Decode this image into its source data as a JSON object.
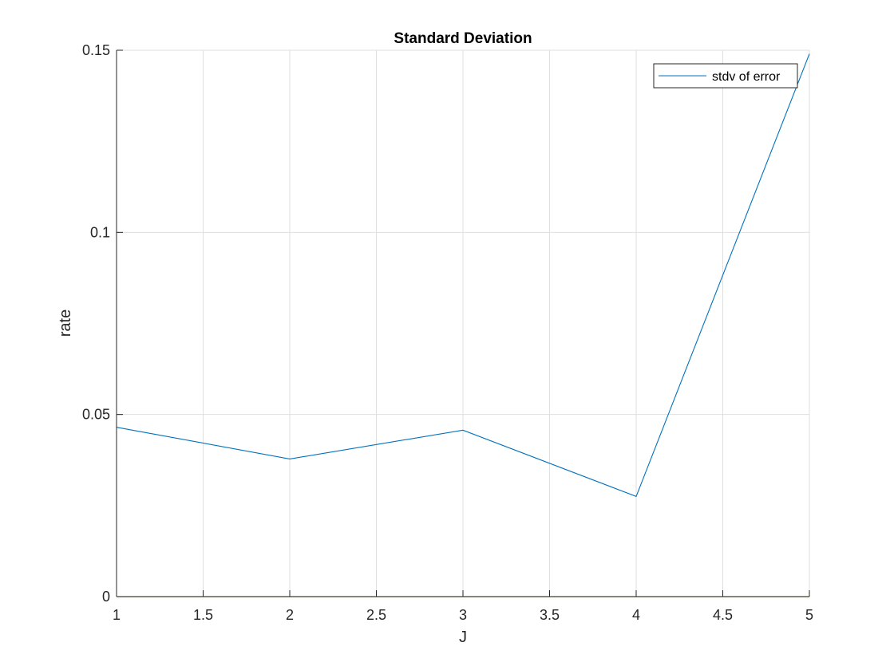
{
  "chart_data": {
    "type": "line",
    "title": "Standard Deviation",
    "xlabel": "J",
    "ylabel": "rate",
    "xlim": [
      1,
      5
    ],
    "ylim": [
      0,
      0.15
    ],
    "x_ticks": [
      1,
      1.5,
      2,
      2.5,
      3,
      3.5,
      4,
      4.5,
      5
    ],
    "x_tick_labels": [
      "1",
      "1.5",
      "2",
      "2.5",
      "3",
      "3.5",
      "4",
      "4.5",
      "5"
    ],
    "y_ticks": [
      0,
      0.05,
      0.1,
      0.15
    ],
    "y_tick_labels": [
      "0",
      "0.05",
      "0.1",
      "0.15"
    ],
    "grid": true,
    "legend_position": "top-right",
    "series": [
      {
        "name": "stdv of error",
        "color": "#0072bd",
        "x": [
          1,
          2,
          3,
          4,
          5
        ],
        "y": [
          0.0465,
          0.0378,
          0.0457,
          0.0275,
          0.149
        ]
      }
    ],
    "baseline": {
      "y": 0,
      "color": "#77ac30"
    }
  }
}
